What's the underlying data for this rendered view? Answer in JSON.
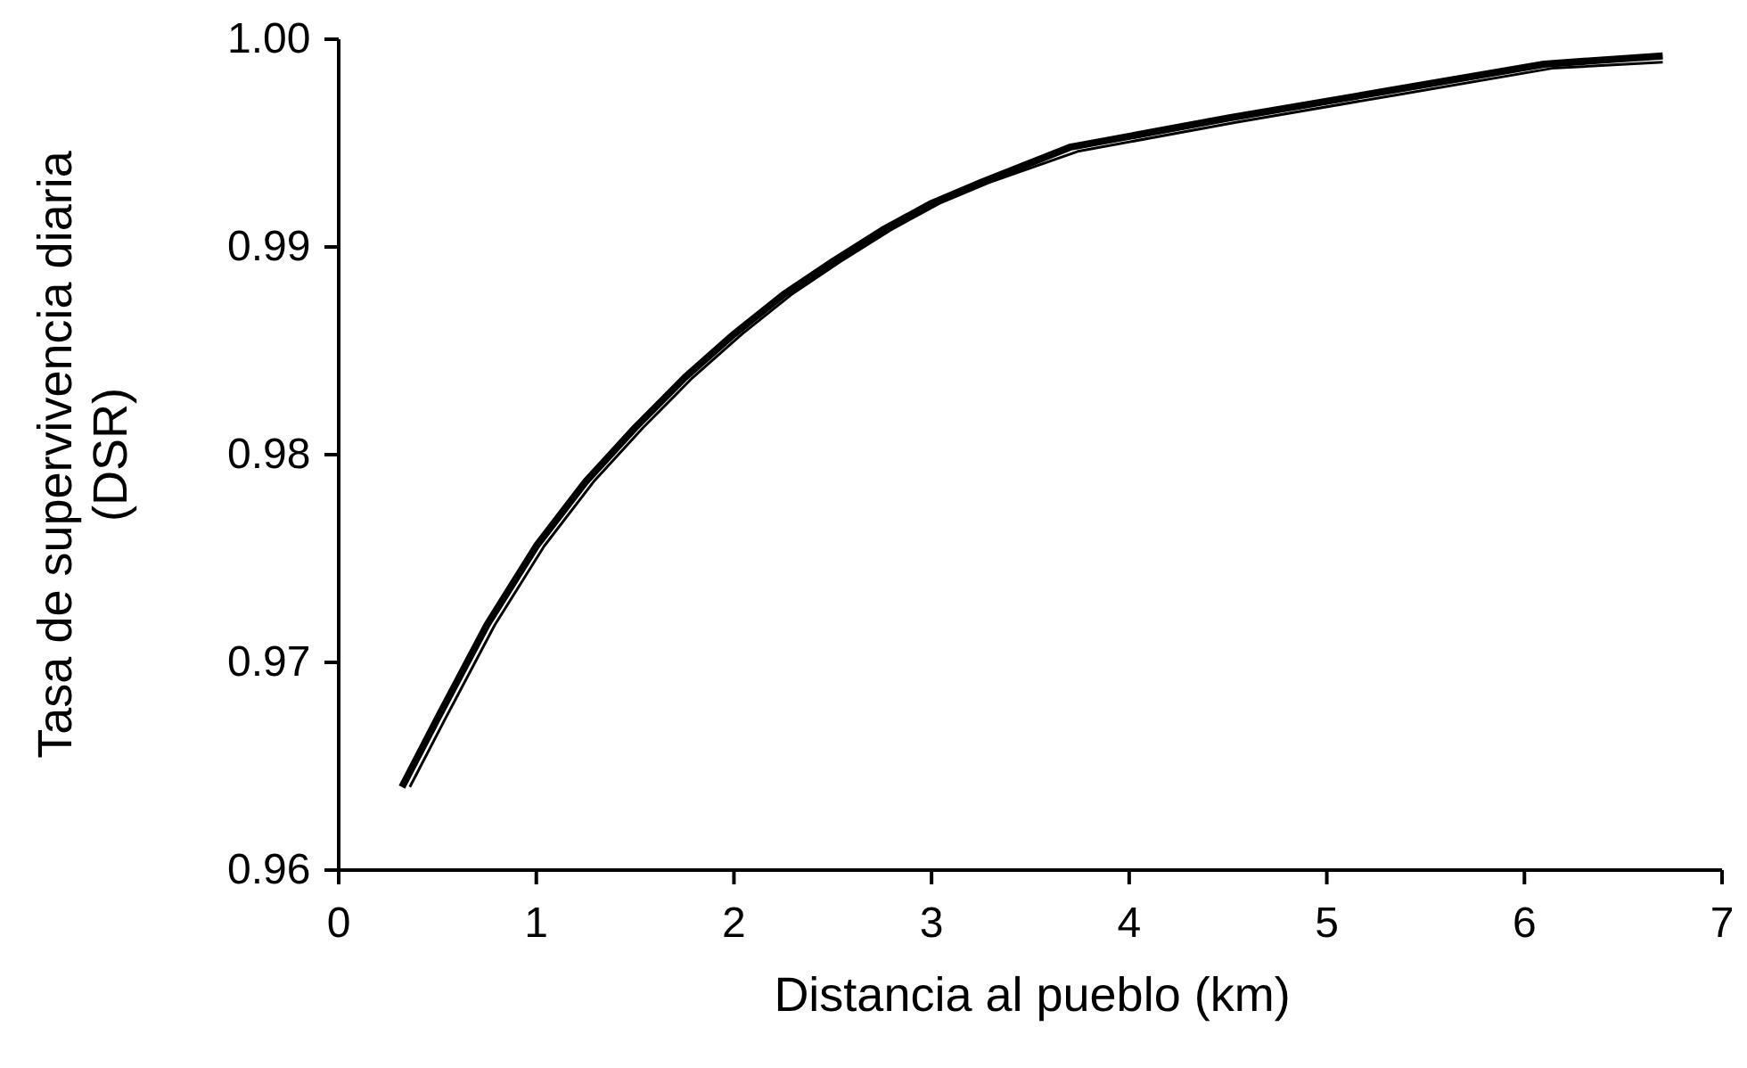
{
  "chart_data": {
    "type": "line",
    "xlabel": "Distancia al pueblo (km)",
    "ylabel": "Tasa de supervivencia diaria (DSR)",
    "xlim": [
      0,
      7
    ],
    "ylim": [
      0.96,
      1.0
    ],
    "xticks": [
      0,
      1,
      2,
      3,
      4,
      5,
      6,
      7
    ],
    "yticks": [
      {
        "value": 0.96,
        "label": "0.96"
      },
      {
        "value": 0.97,
        "label": "0.97"
      },
      {
        "value": 0.98,
        "label": "0.98"
      },
      {
        "value": 0.99,
        "label": "0.99"
      },
      {
        "value": 1.0,
        "label": "1.00"
      }
    ],
    "series": [
      {
        "color": "#000000",
        "x": [
          0.32,
          0.5,
          0.75,
          1,
          1.25,
          1.5,
          1.75,
          2,
          2.25,
          2.5,
          2.75,
          3,
          3.25,
          3.7,
          4.5,
          5.3,
          6.1,
          6.7
        ],
        "values": [
          0.964,
          0.9673,
          0.9718,
          0.9756,
          0.9787,
          0.9813,
          0.9837,
          0.9858,
          0.9877,
          0.9893,
          0.9908,
          0.9921,
          0.9931,
          0.9948,
          0.9962,
          0.9975,
          0.9988,
          0.9992
        ]
      },
      {
        "color": "#000000",
        "x": [
          0.36,
          0.54,
          0.79,
          1.04,
          1.29,
          1.54,
          1.79,
          2.04,
          2.29,
          2.54,
          2.79,
          3.04,
          3.29,
          3.74,
          4.54,
          5.34,
          6.14,
          6.7
        ],
        "values": [
          0.964,
          0.9673,
          0.9718,
          0.9756,
          0.9787,
          0.9813,
          0.9837,
          0.9858,
          0.9877,
          0.9893,
          0.9908,
          0.9921,
          0.9931,
          0.9946,
          0.996,
          0.9973,
          0.9986,
          0.9989
        ]
      }
    ]
  }
}
